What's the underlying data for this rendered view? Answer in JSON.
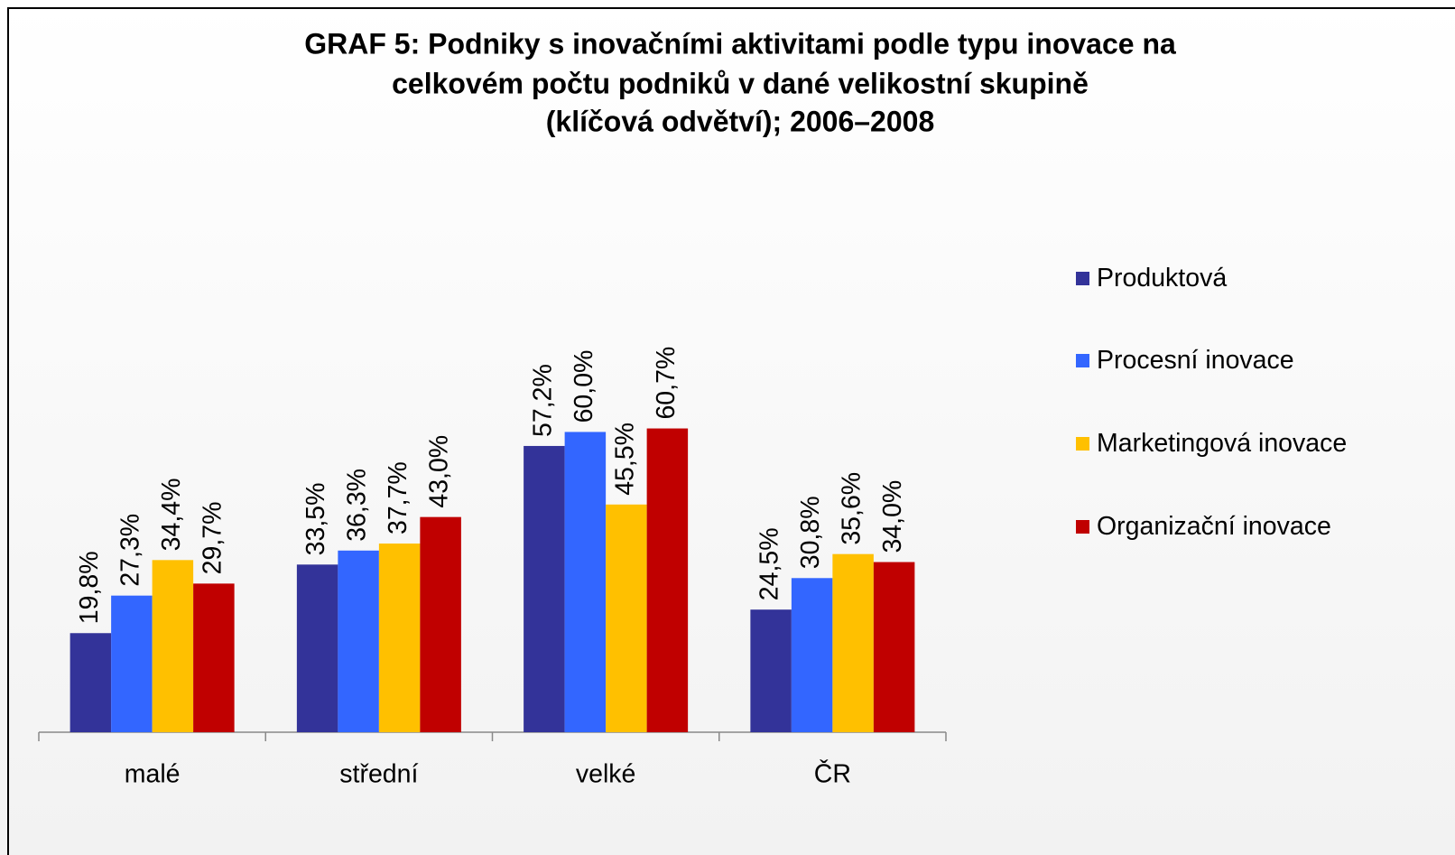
{
  "chart_data": {
    "type": "bar",
    "title": [
      "GRAF 5: Podniky s inovačními aktivitami podle typu inovace na",
      "celkovém počtu podniků v dané velikostní skupině",
      "(klíčová odvětví); 2006–2008"
    ],
    "categories": [
      "malé",
      "střední",
      "velké",
      "ČR"
    ],
    "series": [
      {
        "name": "Produktová",
        "color": "#333399",
        "values": [
          19.8,
          33.5,
          57.2,
          24.5
        ],
        "value_labels": [
          "19,8%",
          "33,5%",
          "57,2%",
          "24,5%"
        ]
      },
      {
        "name": "Procesní inovace",
        "color": "#3366ff",
        "values": [
          27.3,
          36.3,
          60.0,
          30.8
        ],
        "value_labels": [
          "27,3%",
          "36,3%",
          "60,0%",
          "30,8%"
        ]
      },
      {
        "name": "Marketingová inovace",
        "color": "#ffc000",
        "values": [
          34.4,
          37.7,
          45.5,
          35.6
        ],
        "value_labels": [
          "34,4%",
          "37,7%",
          "45,5%",
          "35,6%"
        ]
      },
      {
        "name": "Organizační inovace",
        "color": "#c00000",
        "values": [
          29.7,
          43.0,
          60.7,
          34.0
        ],
        "value_labels": [
          "29,7%",
          "43,0%",
          "60,7%",
          "34,0%"
        ]
      }
    ],
    "ylim": [
      0,
      70
    ],
    "legend": "right"
  }
}
